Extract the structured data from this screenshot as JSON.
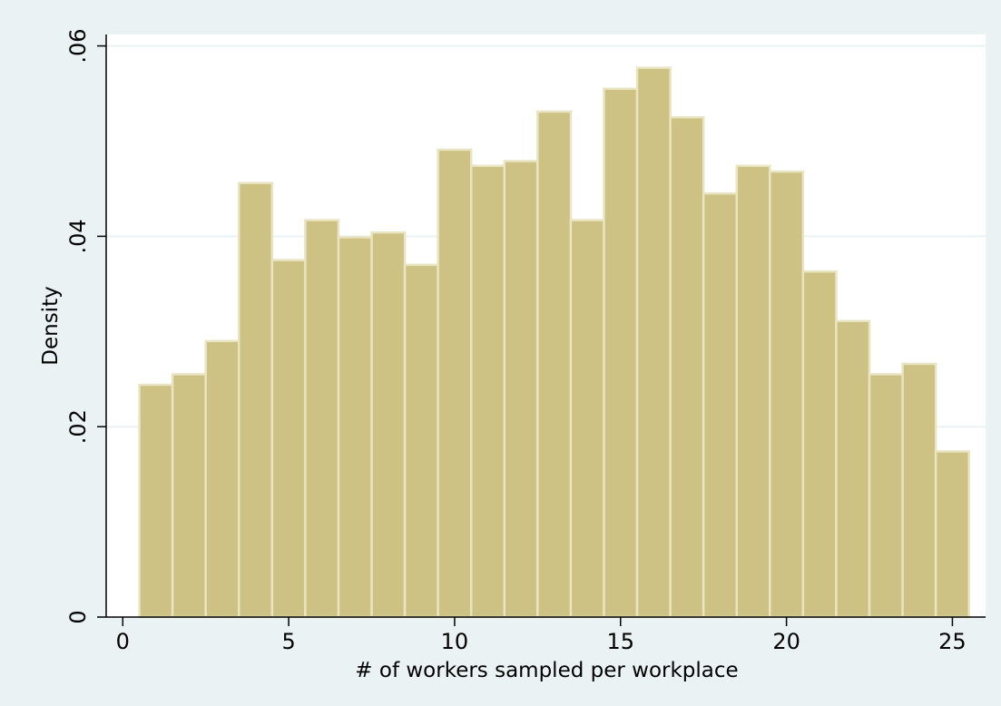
{
  "chart_data": {
    "type": "bar",
    "title": "",
    "xlabel": "# of workers sampled per workplace",
    "ylabel": "Density",
    "xlim": [
      -0.5,
      26
    ],
    "ylim": [
      0,
      0.0612
    ],
    "grid": true,
    "x_ticks": [
      {
        "value": 0,
        "label": "0"
      },
      {
        "value": 5,
        "label": "5"
      },
      {
        "value": 10,
        "label": "10"
      },
      {
        "value": 15,
        "label": "15"
      },
      {
        "value": 20,
        "label": "20"
      },
      {
        "value": 25,
        "label": "25"
      }
    ],
    "y_ticks": [
      {
        "value": 0,
        "label": "0"
      },
      {
        "value": 0.02,
        "label": ".02"
      },
      {
        "value": 0.04,
        "label": ".04"
      },
      {
        "value": 0.06,
        "label": ".06"
      }
    ],
    "bin_width": 1,
    "x": [
      1,
      2,
      3,
      4,
      5,
      6,
      7,
      8,
      9,
      10,
      11,
      12,
      13,
      14,
      15,
      16,
      17,
      18,
      19,
      20,
      21,
      22,
      23,
      24,
      25
    ],
    "values": [
      0.0244,
      0.0255,
      0.029,
      0.0456,
      0.0375,
      0.0417,
      0.0399,
      0.0404,
      0.037,
      0.0491,
      0.0474,
      0.0479,
      0.0531,
      0.0417,
      0.0555,
      0.0577,
      0.0525,
      0.0445,
      0.0474,
      0.0468,
      0.0363,
      0.0311,
      0.0255,
      0.0266,
      0.0174
    ],
    "colors": {
      "background": "#eaf2f3",
      "plot_background": "#ffffff",
      "bar_fill": "#cdc183",
      "bar_stroke": "#e9e4c2",
      "grid": "#eaf2f3",
      "axis": "#000000"
    }
  }
}
